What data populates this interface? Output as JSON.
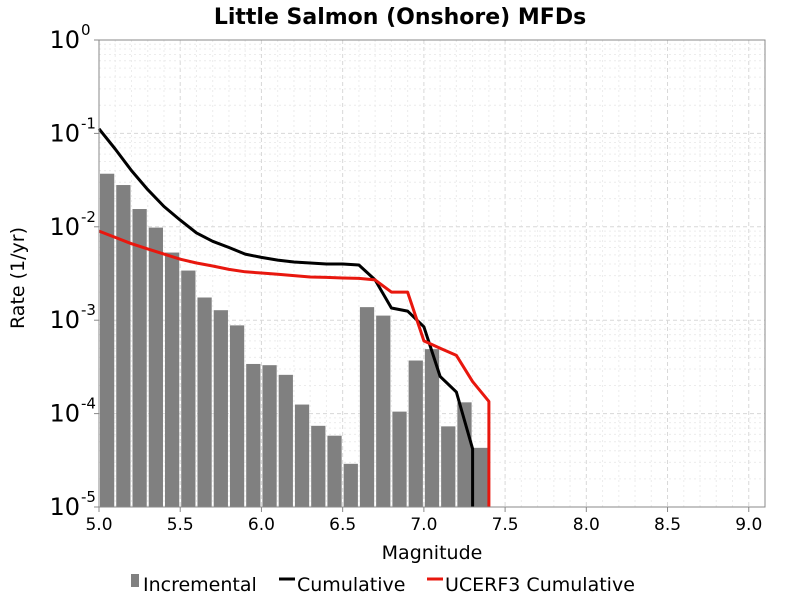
{
  "chart_data": {
    "type": "bar",
    "title": "Little Salmon (Onshore) MFDs",
    "xlabel": "Magnitude",
    "ylabel": "Rate (1/yr)",
    "xlim": [
      5.0,
      9.1
    ],
    "ylim": [
      1e-05,
      1
    ],
    "yscale": "log",
    "grid": true,
    "legend_position": "bottom",
    "x_ticks": [
      "5.0",
      "5.5",
      "6.0",
      "6.5",
      "7.0",
      "7.5",
      "8.0",
      "8.5",
      "9.0"
    ],
    "y_ticks": [
      {
        "base": "10",
        "exp": "-5",
        "value": 1e-05
      },
      {
        "base": "10",
        "exp": "-4",
        "value": 0.0001
      },
      {
        "base": "10",
        "exp": "-3",
        "value": 0.001
      },
      {
        "base": "10",
        "exp": "-2",
        "value": 0.01
      },
      {
        "base": "10",
        "exp": "-1",
        "value": 0.1
      },
      {
        "base": "10",
        "exp": "0",
        "value": 1
      }
    ],
    "legend": [
      {
        "label": "Incremental",
        "type": "bar",
        "color": "#808080"
      },
      {
        "label": "Cumulative",
        "type": "line",
        "color": "#000000"
      },
      {
        "label": "UCERF3 Cumulative",
        "type": "line",
        "color": "#e8170e"
      }
    ],
    "series": [
      {
        "name": "Incremental",
        "type": "bar",
        "color": "#808080",
        "bin_width": 0.1,
        "x": [
          5.05,
          5.15,
          5.25,
          5.35,
          5.45,
          5.55,
          5.65,
          5.75,
          5.85,
          5.95,
          6.05,
          6.15,
          6.25,
          6.35,
          6.45,
          6.55,
          6.65,
          6.75,
          6.85,
          6.95,
          7.05,
          7.15,
          7.25,
          7.35
        ],
        "values": [
          0.037,
          0.028,
          0.0155,
          0.0098,
          0.0053,
          0.0034,
          0.00175,
          0.00128,
          0.00088,
          0.00034,
          0.00033,
          0.00026,
          0.000125,
          7.4e-05,
          5.8e-05,
          2.9e-05,
          0.00138,
          0.00112,
          0.000105,
          0.00037,
          0.00049,
          7.3e-05,
          0.000132,
          4.3e-05
        ]
      },
      {
        "name": "Cumulative",
        "type": "line",
        "color": "#000000",
        "x": [
          5.0,
          5.1,
          5.2,
          5.3,
          5.4,
          5.5,
          5.6,
          5.7,
          5.8,
          5.9,
          6.0,
          6.1,
          6.2,
          6.3,
          6.4,
          6.5,
          6.6,
          6.7,
          6.8,
          6.9,
          7.0,
          7.1,
          7.2,
          7.3,
          7.3
        ],
        "values": [
          0.112,
          0.068,
          0.04,
          0.025,
          0.0165,
          0.0118,
          0.0086,
          0.007,
          0.006,
          0.0051,
          0.0047,
          0.0044,
          0.0042,
          0.0041,
          0.004,
          0.004,
          0.0039,
          0.0027,
          0.00135,
          0.00125,
          0.00085,
          0.00025,
          0.00017,
          4.2e-05,
          1e-05
        ]
      },
      {
        "name": "UCERF3 Cumulative",
        "type": "line",
        "color": "#e8170e",
        "x": [
          5.0,
          5.1,
          5.2,
          5.3,
          5.4,
          5.5,
          5.6,
          5.7,
          5.8,
          5.9,
          6.0,
          6.1,
          6.2,
          6.3,
          6.4,
          6.5,
          6.6,
          6.7,
          6.8,
          6.9,
          7.0,
          7.1,
          7.2,
          7.3,
          7.4,
          7.4
        ],
        "values": [
          0.009,
          0.0077,
          0.0066,
          0.0058,
          0.0051,
          0.0045,
          0.0041,
          0.0038,
          0.0035,
          0.0033,
          0.0032,
          0.0031,
          0.003,
          0.0029,
          0.00287,
          0.00283,
          0.0028,
          0.0027,
          0.002,
          0.002,
          0.0006,
          0.0005,
          0.00042,
          0.00022,
          0.000135,
          1e-05
        ]
      }
    ]
  }
}
